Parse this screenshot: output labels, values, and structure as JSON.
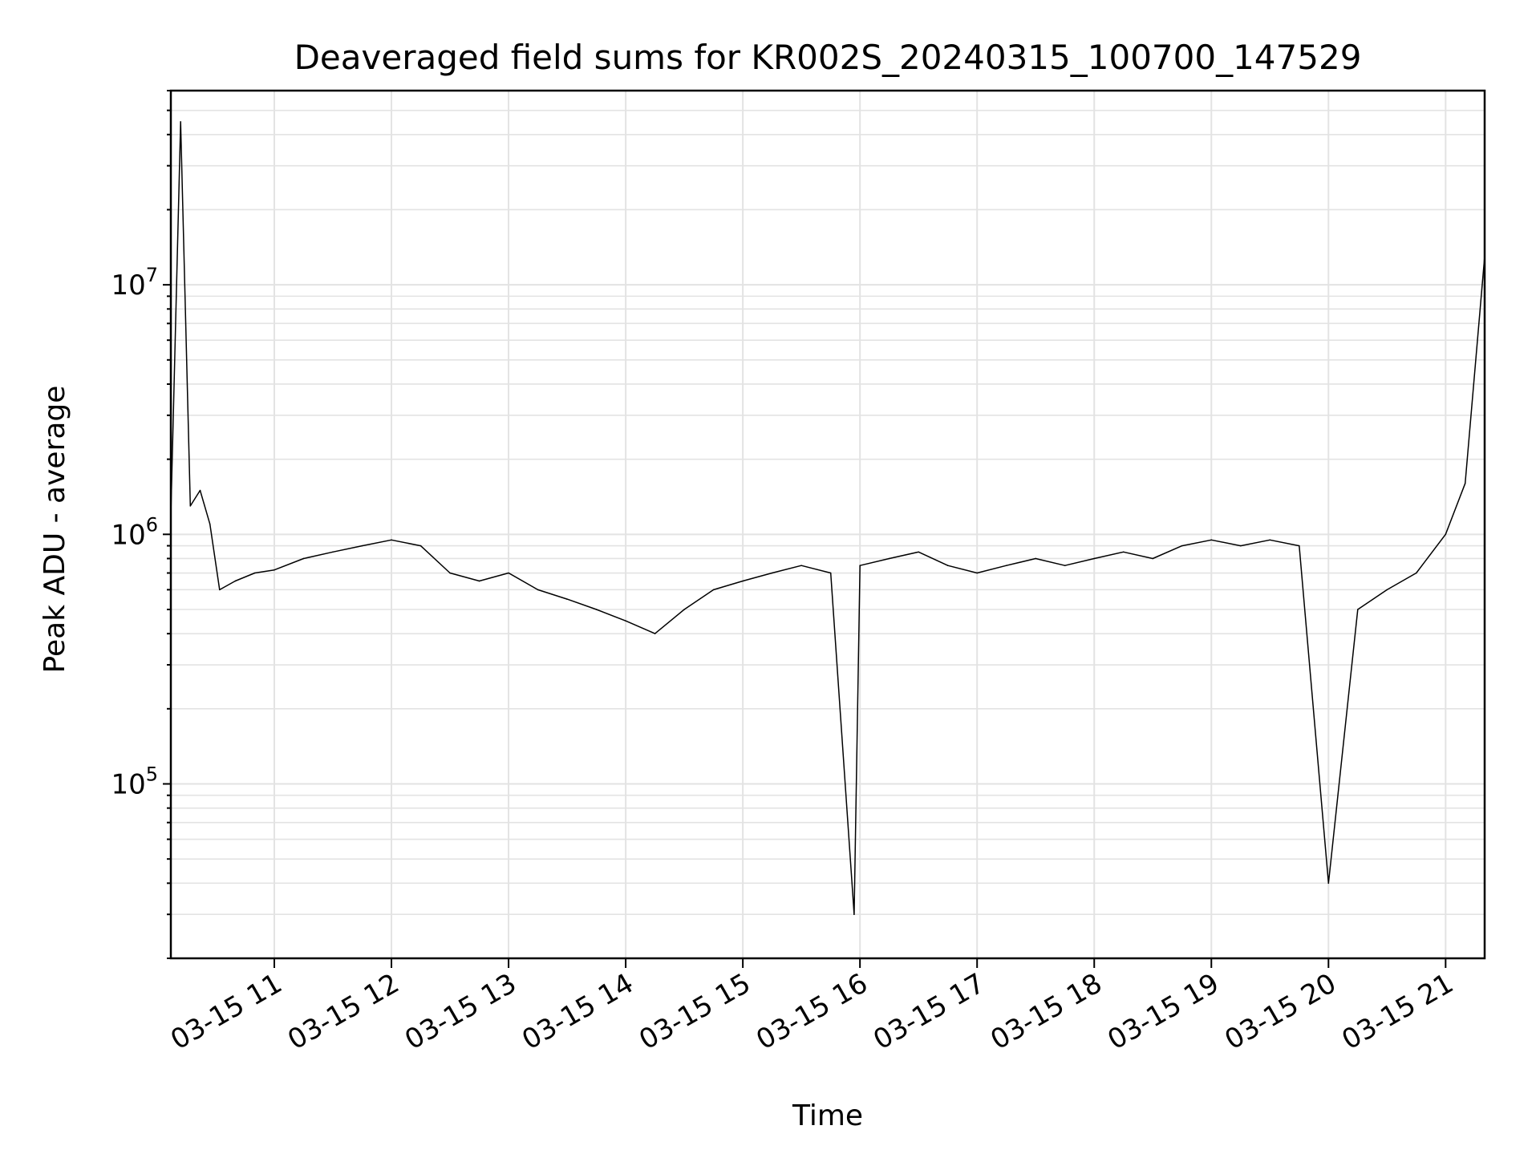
{
  "chart_data": {
    "type": "line",
    "title": "Deaveraged field sums for KR002S_20240315_100700_147529",
    "xlabel": "Time",
    "ylabel": "Peak ADU - average",
    "y_scale": "log",
    "ylim": [
      20000,
      60000000
    ],
    "xlim": [
      "2024-03-15T10:07:00",
      "2024-03-15T21:20:00"
    ],
    "grid": true,
    "line_color": "#000000",
    "x_tick_labels": [
      "03-15 11",
      "03-15 12",
      "03-15 13",
      "03-15 14",
      "03-15 15",
      "03-15 16",
      "03-15 17",
      "03-15 18",
      "03-15 19",
      "03-15 20",
      "03-15 21"
    ],
    "x_tick_values": [
      "2024-03-15T11:00",
      "2024-03-15T12:00",
      "2024-03-15T13:00",
      "2024-03-15T14:00",
      "2024-03-15T15:00",
      "2024-03-15T16:00",
      "2024-03-15T17:00",
      "2024-03-15T18:00",
      "2024-03-15T19:00",
      "2024-03-15T20:00",
      "2024-03-15T21:00"
    ],
    "y_tick_labels": [
      {
        "base": "10",
        "exp": "5"
      },
      {
        "base": "10",
        "exp": "6"
      },
      {
        "base": "10",
        "exp": "7"
      }
    ],
    "y_tick_values": [
      100000,
      1000000,
      10000000
    ],
    "series": [
      {
        "x": [
          "2024-03-15T10:07",
          "2024-03-15T10:12",
          "2024-03-15T10:17",
          "2024-03-15T10:22",
          "2024-03-15T10:27",
          "2024-03-15T10:32",
          "2024-03-15T10:40",
          "2024-03-15T10:50",
          "2024-03-15T11:00",
          "2024-03-15T11:15",
          "2024-03-15T11:30",
          "2024-03-15T11:45",
          "2024-03-15T12:00",
          "2024-03-15T12:15",
          "2024-03-15T12:30",
          "2024-03-15T12:45",
          "2024-03-15T13:00",
          "2024-03-15T13:15",
          "2024-03-15T13:30",
          "2024-03-15T13:45",
          "2024-03-15T14:00",
          "2024-03-15T14:15",
          "2024-03-15T14:30",
          "2024-03-15T14:45",
          "2024-03-15T15:00",
          "2024-03-15T15:15",
          "2024-03-15T15:30",
          "2024-03-15T15:45",
          "2024-03-15T15:57",
          "2024-03-15T16:00",
          "2024-03-15T16:15",
          "2024-03-15T16:30",
          "2024-03-15T16:45",
          "2024-03-15T17:00",
          "2024-03-15T17:15",
          "2024-03-15T17:30",
          "2024-03-15T17:45",
          "2024-03-15T18:00",
          "2024-03-15T18:15",
          "2024-03-15T18:30",
          "2024-03-15T18:45",
          "2024-03-15T19:00",
          "2024-03-15T19:15",
          "2024-03-15T19:30",
          "2024-03-15T19:45",
          "2024-03-15T20:00",
          "2024-03-15T20:15",
          "2024-03-15T20:30",
          "2024-03-15T20:45",
          "2024-03-15T21:00",
          "2024-03-15T21:10",
          "2024-03-15T21:20"
        ],
        "values": [
          1200000,
          45000000,
          1300000,
          1500000,
          1100000,
          600000,
          650000,
          700000,
          720000,
          800000,
          850000,
          900000,
          950000,
          900000,
          700000,
          650000,
          700000,
          600000,
          550000,
          500000,
          450000,
          400000,
          500000,
          600000,
          650000,
          700000,
          750000,
          700000,
          30000,
          750000,
          800000,
          850000,
          750000,
          700000,
          750000,
          800000,
          750000,
          800000,
          850000,
          800000,
          900000,
          950000,
          900000,
          950000,
          900000,
          40000,
          500000,
          600000,
          700000,
          1000000,
          1600000,
          13000000
        ]
      }
    ]
  }
}
